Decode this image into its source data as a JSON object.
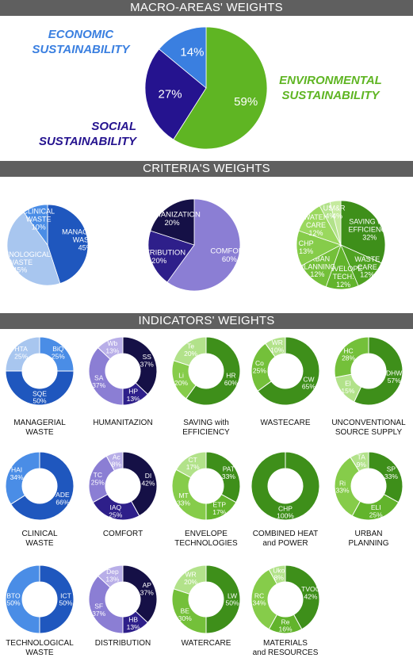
{
  "headers": {
    "macro": "MACRO-AREAS' WEIGHTS",
    "criteria": "CRITERIA'S WEIGHTS",
    "indicators": "INDICATORS' WEIGHTS"
  },
  "macro_labels": {
    "economic": "ECONOMIC\nSUSTAINABILITY",
    "social": "SOCIAL\nSUSTAINABILITY",
    "environmental": "ENVIRONMENTAL\nSUSTAINABILITY"
  },
  "chart_data": [
    {
      "id": "macro",
      "type": "pie",
      "categories": [
        "",
        "",
        ""
      ],
      "values": [
        59,
        27,
        14
      ],
      "labels": [
        "59%",
        "27%",
        "14%"
      ],
      "colors": [
        "#5fb523",
        "#25138f",
        "#3a7fe0"
      ]
    },
    {
      "id": "criteria-economic",
      "type": "pie",
      "categories": [
        "MANAGERIAL\nWASTE",
        "TECHNOLOGICAL\nWASTE",
        "CLINICAL\nWASTE"
      ],
      "values": [
        45,
        45,
        10
      ],
      "labels": [
        "45%",
        "45%",
        "10%"
      ],
      "colors": [
        "#1f57be",
        "#a8c6ef",
        "#4a8de6"
      ]
    },
    {
      "id": "criteria-social",
      "type": "pie",
      "categories": [
        "COMFORT",
        "DISTRIBUTION",
        "HUMANIZATION"
      ],
      "values": [
        60,
        20,
        20
      ],
      "labels": [
        "60%",
        "20%",
        "20%"
      ],
      "colors": [
        "#8b7ed4",
        "#2e1f8a",
        "#151046"
      ]
    },
    {
      "id": "criteria-environmental",
      "type": "pie",
      "categories": [
        "SAVING with\nEFFICIENCY",
        "WASTE\nCARE",
        "ENVELOPE\nTECH.",
        "URBAN\nPLANNING",
        "CHP",
        "WATER\nCARE",
        "USS",
        "M&R"
      ],
      "values": [
        32,
        12,
        12,
        12,
        13,
        12,
        4,
        4
      ],
      "labels": [
        "32%",
        "12%",
        "12%",
        "12%",
        "13%",
        "12%",
        "4%",
        "4%"
      ],
      "colors": [
        "#3e8f1a",
        "#4fa222",
        "#62b42c",
        "#74c03a",
        "#86cc4a",
        "#9ad85e",
        "#b2e28a",
        "#c5ea9e"
      ]
    },
    {
      "id": "managerial",
      "type": "pie",
      "title": "MANAGERIAL\nWASTE",
      "categories": [
        "BiQ",
        "SQE",
        "HTA"
      ],
      "values": [
        25,
        50,
        25
      ],
      "labels": [
        "25%",
        "50%",
        "25%"
      ],
      "colors": [
        "#4a8de6",
        "#1f57be",
        "#a8c6ef"
      ]
    },
    {
      "id": "humanization",
      "type": "pie",
      "title": "HUMANITAZION",
      "categories": [
        "SS",
        "HP",
        "SA",
        "Wb"
      ],
      "values": [
        37,
        13,
        37,
        13
      ],
      "labels": [
        "37%",
        "13%",
        "37%",
        "13%"
      ],
      "colors": [
        "#151046",
        "#2e1f8a",
        "#8b7ed4",
        "#b8aee8"
      ]
    },
    {
      "id": "saving",
      "type": "pie",
      "title": "SAVING with\nEFFICIENCY",
      "categories": [
        "HR",
        "Li",
        "Te"
      ],
      "values": [
        60,
        20,
        20
      ],
      "labels": [
        "60%",
        "20%",
        "20%"
      ],
      "colors": [
        "#3e8f1a",
        "#86cc4a",
        "#b2e28a"
      ]
    },
    {
      "id": "wastecare",
      "type": "pie",
      "title": "WASTECARE",
      "categories": [
        "CW",
        "Co",
        "WR"
      ],
      "values": [
        65,
        25,
        10
      ],
      "labels": [
        "65%",
        "25%",
        "10%"
      ],
      "colors": [
        "#3e8f1a",
        "#74c03a",
        "#b2e28a"
      ]
    },
    {
      "id": "uss",
      "type": "pie",
      "title": "UNCONVENTIONAL\nSOURCE SUPPLY",
      "categories": [
        "DHW",
        "El",
        "HC"
      ],
      "values": [
        57,
        15,
        28
      ],
      "labels": [
        "57%",
        "15%",
        "28%"
      ],
      "colors": [
        "#3e8f1a",
        "#b2e28a",
        "#74c03a"
      ]
    },
    {
      "id": "clinical",
      "type": "pie",
      "title": "CLINICAL\nWASTE",
      "categories": [
        "ADE",
        "HAI"
      ],
      "values": [
        66,
        34
      ],
      "labels": [
        "66%",
        "34%"
      ],
      "colors": [
        "#1f57be",
        "#4a8de6"
      ]
    },
    {
      "id": "comfort",
      "type": "pie",
      "title": "COMFORT",
      "categories": [
        "DI",
        "IAQ",
        "TC",
        "Ac"
      ],
      "values": [
        42,
        25,
        25,
        8
      ],
      "labels": [
        "42%",
        "25%",
        "25%",
        "8%"
      ],
      "colors": [
        "#151046",
        "#2e1f8a",
        "#8b7ed4",
        "#b8aee8"
      ]
    },
    {
      "id": "envelope",
      "type": "pie",
      "title": "ENVELOPE\nTECHNOLOGIES",
      "categories": [
        "PAT",
        "ETP",
        "MT",
        "CT"
      ],
      "values": [
        33,
        17,
        33,
        17
      ],
      "labels": [
        "33%",
        "17%",
        "33%",
        "17%"
      ],
      "colors": [
        "#3e8f1a",
        "#62b42c",
        "#86cc4a",
        "#b2e28a"
      ]
    },
    {
      "id": "chp",
      "type": "pie",
      "title": "COMBINED HEAT\nand POWER",
      "categories": [
        "CHP"
      ],
      "values": [
        100
      ],
      "labels": [
        "100%"
      ],
      "colors": [
        "#3e8f1a"
      ]
    },
    {
      "id": "urban",
      "type": "pie",
      "title": "URBAN\nPLANNING",
      "categories": [
        "SP",
        "ELI",
        "Ri",
        "TA"
      ],
      "values": [
        33,
        25,
        33,
        9
      ],
      "labels": [
        "33%",
        "25%",
        "33%",
        "9%"
      ],
      "colors": [
        "#3e8f1a",
        "#62b42c",
        "#86cc4a",
        "#b2e28a"
      ]
    },
    {
      "id": "technological",
      "type": "pie",
      "title": "TECHNOLOGICAL\nWASTE",
      "categories": [
        "ICT",
        "BTO"
      ],
      "values": [
        50,
        50
      ],
      "labels": [
        "50%",
        "50%"
      ],
      "colors": [
        "#1f57be",
        "#4a8de6"
      ]
    },
    {
      "id": "distribution",
      "type": "pie",
      "title": "DISTRIBUTION",
      "categories": [
        "AP",
        "HB",
        "SF",
        "Dep"
      ],
      "values": [
        37,
        13,
        37,
        13
      ],
      "labels": [
        "37%",
        "13%",
        "37%",
        "13%"
      ],
      "colors": [
        "#151046",
        "#2e1f8a",
        "#8b7ed4",
        "#b8aee8"
      ]
    },
    {
      "id": "watercare",
      "type": "pie",
      "title": "WATERCARE",
      "categories": [
        "LW",
        "BE",
        "WR"
      ],
      "values": [
        50,
        30,
        20
      ],
      "labels": [
        "50%",
        "30%",
        "20%"
      ],
      "colors": [
        "#3e8f1a",
        "#74c03a",
        "#b2e28a"
      ]
    },
    {
      "id": "materials",
      "type": "pie",
      "title": "MATERIALS\nand RESOURCES",
      "categories": [
        "TVOC",
        "Re",
        "RC",
        "Uko"
      ],
      "values": [
        42,
        16,
        34,
        8
      ],
      "labels": [
        "42%",
        "16%",
        "34%",
        "8%"
      ],
      "colors": [
        "#3e8f1a",
        "#62b42c",
        "#86cc4a",
        "#b2e28a"
      ]
    }
  ]
}
